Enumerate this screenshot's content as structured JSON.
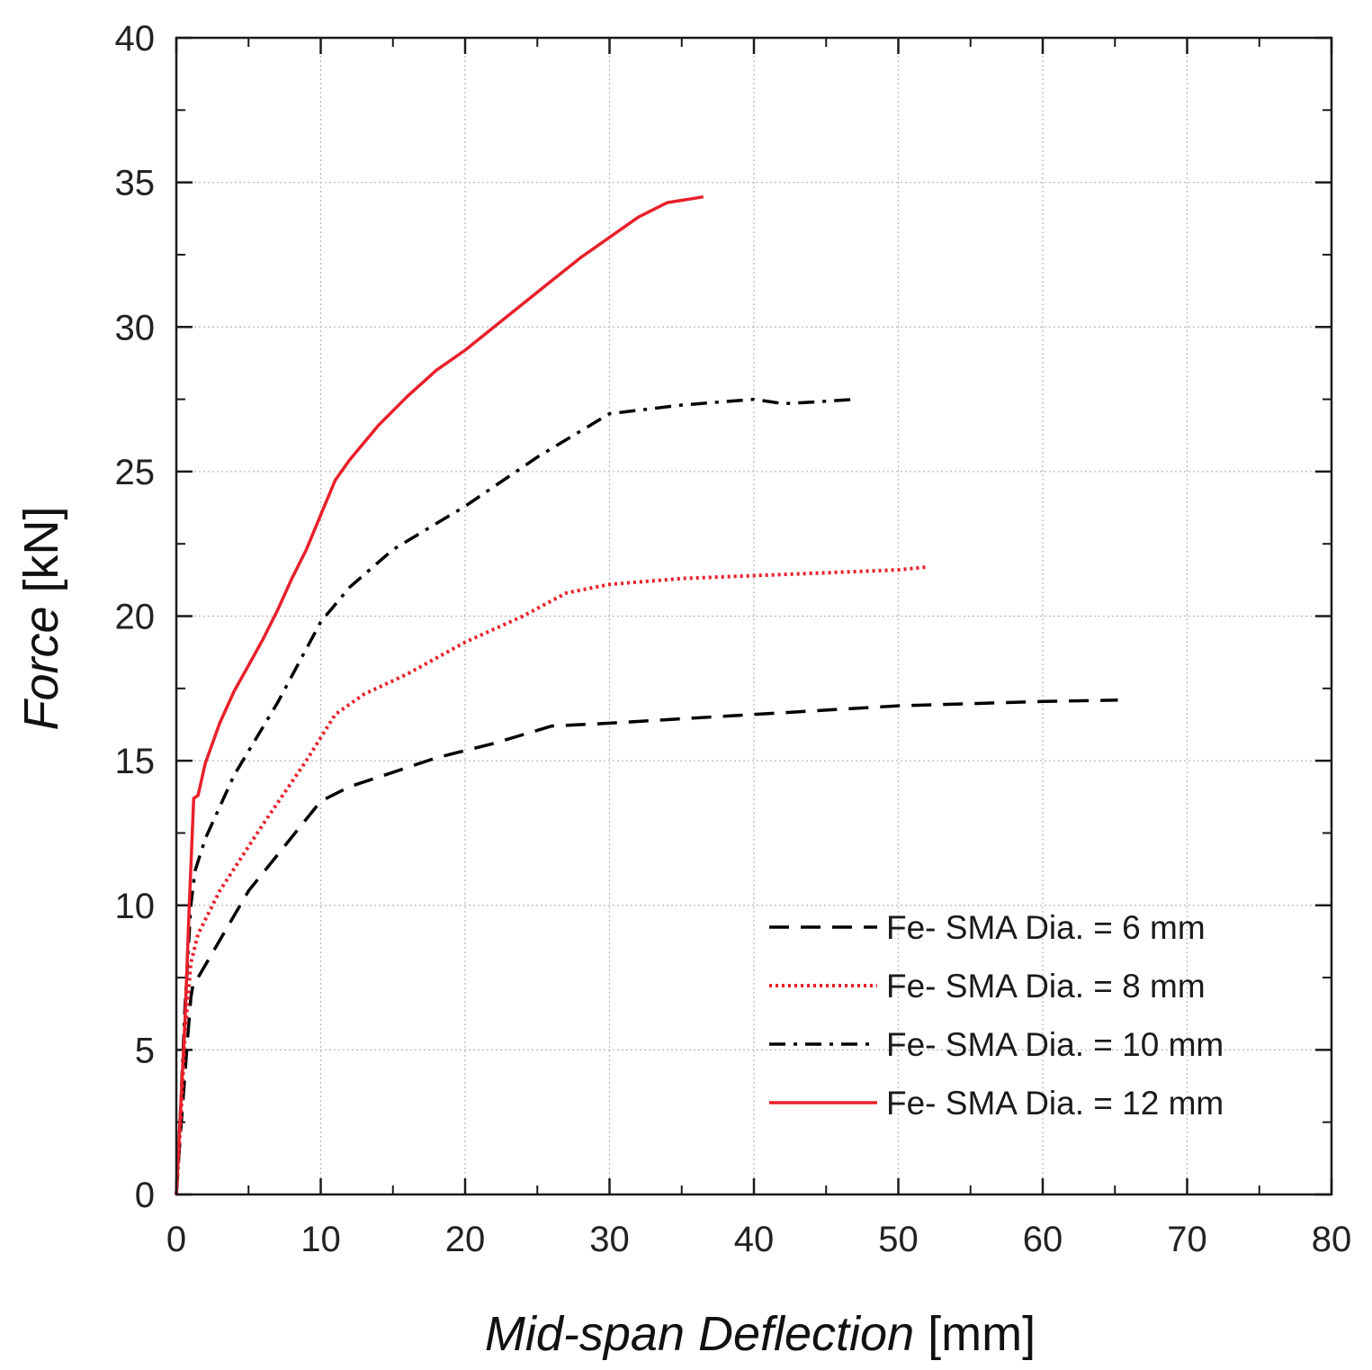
{
  "chart_data": {
    "type": "line",
    "title": "",
    "xlabel": {
      "italic": "Mid-span Deflection",
      "unit": " [mm]"
    },
    "ylabel": {
      "italic": "Force",
      "unit": " [kN]"
    },
    "xlim": [
      0,
      80
    ],
    "ylim": [
      0,
      40
    ],
    "xticks": [
      "0",
      "10",
      "20",
      "30",
      "40",
      "50",
      "60",
      "70",
      "80"
    ],
    "yticks": [
      "0",
      "5",
      "10",
      "15",
      "20",
      "25",
      "30",
      "35",
      "40"
    ],
    "grid": true,
    "legend_position": "bottom-right",
    "series": [
      {
        "name": "Fe- SMA Dia. = 6 mm",
        "color": "#000000",
        "style": "dashed",
        "x": [
          0,
          0.2,
          0.5,
          0.8,
          1.0,
          1.2,
          1.5,
          5,
          10,
          12,
          15,
          18,
          22,
          26,
          30,
          40,
          50,
          60,
          65.2
        ],
        "y": [
          0,
          1.5,
          3.5,
          5.5,
          6.8,
          7.4,
          7.5,
          10.5,
          13.6,
          14.1,
          14.6,
          15.1,
          15.6,
          16.2,
          16.3,
          16.6,
          16.9,
          17.05,
          17.1
        ]
      },
      {
        "name": "Fe- SMA Dia. = 8 mm",
        "color": "#e8202a",
        "style": "dotted",
        "x": [
          0,
          0.3,
          0.6,
          1.0,
          1.5,
          3,
          6,
          9,
          11,
          13,
          16,
          20,
          24,
          27,
          30,
          35,
          40,
          45,
          50,
          52
        ],
        "y": [
          0,
          2.5,
          5.5,
          8.0,
          9.0,
          10.5,
          12.8,
          15.0,
          16.6,
          17.3,
          18.0,
          19.1,
          20.0,
          20.8,
          21.1,
          21.3,
          21.4,
          21.5,
          21.6,
          21.7
        ]
      },
      {
        "name": "Fe- SMA Dia. = 10 mm",
        "color": "#000000",
        "style": "dashdot",
        "x": [
          0,
          0.3,
          0.6,
          1.0,
          1.3,
          2,
          4,
          7,
          10,
          12,
          15,
          20,
          25,
          30,
          35,
          40,
          42,
          44,
          47
        ],
        "y": [
          0,
          3.0,
          6.5,
          10.0,
          11.2,
          12.3,
          14.5,
          17.0,
          19.8,
          21.0,
          22.3,
          23.8,
          25.5,
          27.0,
          27.3,
          27.5,
          27.35,
          27.4,
          27.5
        ]
      },
      {
        "name": "Fe- SMA Dia. = 12 mm",
        "color": "#e8202a",
        "style": "solid",
        "x": [
          0,
          0.3,
          0.6,
          0.9,
          1.2,
          1.5,
          2,
          3,
          4,
          5,
          6,
          7,
          8,
          9,
          10,
          11,
          12,
          14,
          16,
          18,
          20,
          22,
          24,
          26,
          28,
          30,
          32,
          34,
          36.5
        ],
        "y": [
          0,
          3.0,
          6.0,
          10.0,
          13.7,
          13.8,
          14.9,
          16.3,
          17.4,
          18.3,
          19.2,
          20.2,
          21.3,
          22.3,
          23.5,
          24.7,
          25.4,
          26.6,
          27.6,
          28.5,
          29.2,
          30.0,
          30.8,
          31.6,
          32.4,
          33.1,
          33.8,
          34.3,
          34.5
        ]
      }
    ]
  }
}
